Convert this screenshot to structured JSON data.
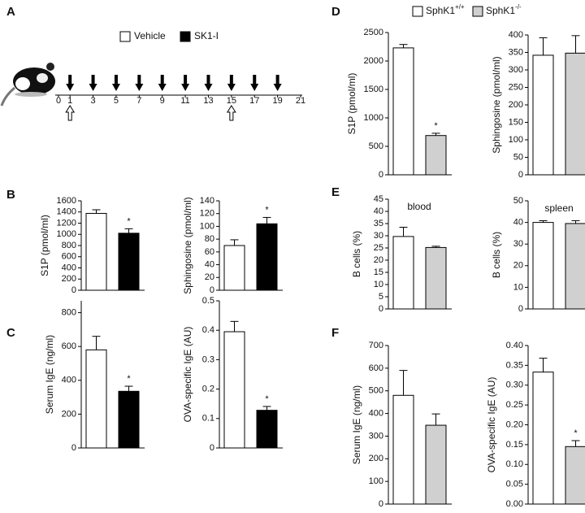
{
  "panel_labels": [
    "A",
    "B",
    "C",
    "D",
    "E",
    "F"
  ],
  "legend_left": [
    {
      "name": "Vehicle",
      "color": "#ffffff"
    },
    {
      "name": "SK1-I",
      "color": "#000000"
    }
  ],
  "legend_right": [
    {
      "name": "SphK1",
      "sup": "+/+",
      "color": "#ffffff"
    },
    {
      "name": "SphK1",
      "sup": "-/-",
      "color": "#d0d0d0"
    }
  ],
  "timeline": {
    "ticks": [
      0,
      1,
      3,
      5,
      7,
      9,
      11,
      13,
      15,
      17,
      19,
      21
    ],
    "arrows_down": [
      1,
      3,
      5,
      7,
      9,
      11,
      13,
      15,
      17,
      19
    ],
    "arrows_up": [
      1,
      15
    ]
  },
  "chart_data": [
    {
      "type": "bar",
      "ylabel": "S1P (pmol/ml)",
      "values": [
        1375,
        1020
      ],
      "errors": [
        65,
        80
      ],
      "colors": [
        "#ffffff",
        "#000000"
      ],
      "ylim": [
        0,
        1600
      ],
      "yticks": [
        0,
        200,
        400,
        600,
        800,
        1000,
        1200,
        1400,
        1600
      ],
      "annotations": [
        {
          "text": "*",
          "bar": 1
        }
      ]
    },
    {
      "type": "bar",
      "ylabel": "Sphingosine (pmol/ml)",
      "values": [
        70,
        104
      ],
      "errors": [
        9,
        10
      ],
      "colors": [
        "#ffffff",
        "#000000"
      ],
      "ylim": [
        0,
        140
      ],
      "yticks": [
        0,
        20,
        40,
        60,
        80,
        100,
        120,
        140
      ],
      "annotations": [
        {
          "text": "*",
          "bar": 1
        }
      ]
    },
    {
      "type": "bar",
      "ylabel": "Serum IgE (ng/ml)",
      "values": [
        580,
        335
      ],
      "errors": [
        80,
        30
      ],
      "colors": [
        "#ffffff",
        "#000000"
      ],
      "ylim": [
        0,
        870
      ],
      "yticks": [
        0,
        200,
        400,
        600,
        800
      ],
      "annotations": [
        {
          "text": "*",
          "bar": 1
        }
      ]
    },
    {
      "type": "bar",
      "ylabel": "OVA-specific IgE (AU)",
      "values": [
        0.395,
        0.128
      ],
      "errors": [
        0.035,
        0.013
      ],
      "colors": [
        "#ffffff",
        "#000000"
      ],
      "ylim": [
        0,
        0.5
      ],
      "yticks": [
        0,
        0.1,
        0.2,
        0.3,
        0.4,
        0.5
      ],
      "annotations": [
        {
          "text": "*",
          "bar": 1
        }
      ]
    },
    {
      "type": "bar",
      "ylabel": "S1P (pmol/ml)",
      "values": [
        2230,
        690
      ],
      "errors": [
        60,
        40
      ],
      "colors": [
        "#ffffff",
        "#d0d0d0"
      ],
      "ylim": [
        0,
        2500
      ],
      "yticks": [
        0,
        500,
        1000,
        1500,
        2000,
        2500
      ],
      "annotations": [
        {
          "text": "*",
          "bar": 1
        }
      ]
    },
    {
      "type": "bar",
      "ylabel": "Sphingosine (pmol/ml)",
      "values": [
        342,
        348
      ],
      "errors": [
        50,
        50
      ],
      "colors": [
        "#ffffff",
        "#d0d0d0"
      ],
      "ylim": [
        0,
        400
      ],
      "yticks": [
        0,
        50,
        100,
        150,
        200,
        250,
        300,
        350,
        400
      ]
    },
    {
      "type": "bar",
      "ylabel": "B cells (%)",
      "subtitle": "blood",
      "values": [
        29.7,
        25.2
      ],
      "errors": [
        3.8,
        0.5
      ],
      "colors": [
        "#ffffff",
        "#d0d0d0"
      ],
      "ylim": [
        0,
        45
      ],
      "yticks": [
        0,
        5,
        10,
        15,
        20,
        25,
        30,
        35,
        40,
        45
      ]
    },
    {
      "type": "bar",
      "ylabel": "B cells (%)",
      "subtitle": "spleen",
      "values": [
        40,
        39.5
      ],
      "errors": [
        0.8,
        1.3
      ],
      "colors": [
        "#ffffff",
        "#d0d0d0"
      ],
      "ylim": [
        0,
        50
      ],
      "yticks": [
        0,
        10,
        20,
        30,
        40,
        50
      ]
    },
    {
      "type": "bar",
      "ylabel": "Serum IgE (ng/ml)",
      "values": [
        480,
        348
      ],
      "errors": [
        110,
        50
      ],
      "colors": [
        "#ffffff",
        "#d0d0d0"
      ],
      "ylim": [
        0,
        700
      ],
      "yticks": [
        0,
        100,
        200,
        300,
        400,
        500,
        600,
        700
      ]
    },
    {
      "type": "bar",
      "ylabel": "OVA-specific IgE (AU)",
      "values": [
        0.333,
        0.145
      ],
      "errors": [
        0.035,
        0.015
      ],
      "colors": [
        "#ffffff",
        "#d0d0d0"
      ],
      "ylim": [
        0,
        0.4
      ],
      "yticks": [
        {
          "value": 0,
          "label": "0.00"
        },
        {
          "value": 0.05,
          "label": "0.05"
        },
        {
          "value": 0.1,
          "label": "0.10"
        },
        {
          "value": 0.15,
          "label": "0.15"
        },
        {
          "value": 0.2,
          "label": "0.20"
        },
        {
          "value": 0.25,
          "label": "0.25"
        },
        {
          "value": 0.3,
          "label": "0.30"
        },
        {
          "value": 0.35,
          "label": "0.35"
        },
        {
          "value": 0.4,
          "label": "0.40"
        }
      ],
      "annotations": [
        {
          "text": "*",
          "bar": 1
        }
      ]
    }
  ]
}
